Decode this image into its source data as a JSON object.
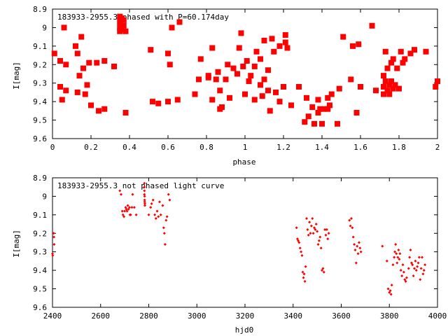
{
  "chart_data": [
    {
      "type": "scatter",
      "title": "183933-2955.3 phased with P=60.174day",
      "xlabel": "phase",
      "ylabel": "I[mag]",
      "xlim": [
        0,
        2
      ],
      "ylim": [
        8.9,
        9.6
      ],
      "y_inverted": true,
      "x_ticks": [
        "0",
        "0.2",
        "0.4",
        "0.6",
        "0.8",
        "1",
        "1.2",
        "1.4",
        "1.6",
        "1.8",
        "2"
      ],
      "y_ticks": [
        "8.9",
        "9",
        "9.1",
        "9.2",
        "9.3",
        "9.4",
        "9.5",
        "9.6"
      ],
      "grid": false,
      "marker_color": "#ff0000",
      "points": [
        [
          0.01,
          9.14
        ],
        [
          0.04,
          9.18
        ],
        [
          0.04,
          9.32
        ],
        [
          0.05,
          9.39
        ],
        [
          0.06,
          9.0
        ],
        [
          0.07,
          9.34
        ],
        [
          0.07,
          9.2
        ],
        [
          0.12,
          9.1
        ],
        [
          0.13,
          9.14
        ],
        [
          0.13,
          9.35
        ],
        [
          0.14,
          9.26
        ],
        [
          0.15,
          9.05
        ],
        [
          0.16,
          9.22
        ],
        [
          0.17,
          9.36
        ],
        [
          0.18,
          9.31
        ],
        [
          0.19,
          9.19
        ],
        [
          0.2,
          9.42
        ],
        [
          0.23,
          9.19
        ],
        [
          0.24,
          9.45
        ],
        [
          0.27,
          9.18
        ],
        [
          0.27,
          9.44
        ],
        [
          0.32,
          9.21
        ],
        [
          0.38,
          9.46
        ],
        [
          0.35,
          8.94
        ],
        [
          0.35,
          8.97
        ],
        [
          0.35,
          9.0
        ],
        [
          0.35,
          9.02
        ],
        [
          0.36,
          8.95
        ],
        [
          0.36,
          9.01
        ],
        [
          0.37,
          8.96
        ],
        [
          0.37,
          8.99
        ],
        [
          0.38,
          9.02
        ],
        [
          0.51,
          9.12
        ],
        [
          0.52,
          9.4
        ],
        [
          0.55,
          9.41
        ],
        [
          0.6,
          9.14
        ],
        [
          0.6,
          9.4
        ],
        [
          0.61,
          9.2
        ],
        [
          0.62,
          9.0
        ],
        [
          0.65,
          9.39
        ],
        [
          0.66,
          8.97
        ],
        [
          0.74,
          9.36
        ],
        [
          0.76,
          9.28
        ],
        [
          0.77,
          9.17
        ],
        [
          0.81,
          9.26
        ],
        [
          0.81,
          9.27
        ],
        [
          0.83,
          9.11
        ],
        [
          0.83,
          9.39
        ],
        [
          0.85,
          9.28
        ],
        [
          0.86,
          9.24
        ],
        [
          0.87,
          9.44
        ],
        [
          0.87,
          9.34
        ],
        [
          0.88,
          9.43
        ],
        [
          0.9,
          9.28
        ],
        [
          0.91,
          9.2
        ],
        [
          0.92,
          9.38
        ],
        [
          0.94,
          9.22
        ],
        [
          0.96,
          9.25
        ],
        [
          0.97,
          9.11
        ],
        [
          0.98,
          9.03
        ],
        [
          0.99,
          9.21
        ],
        [
          1.0,
          9.36
        ],
        [
          1.01,
          9.18
        ],
        [
          1.02,
          9.29
        ],
        [
          1.03,
          9.26
        ],
        [
          1.05,
          9.21
        ],
        [
          1.05,
          9.39
        ],
        [
          1.06,
          9.13
        ],
        [
          1.08,
          9.17
        ],
        [
          1.08,
          9.31
        ],
        [
          1.09,
          9.37
        ],
        [
          1.1,
          9.07
        ],
        [
          1.1,
          9.28
        ],
        [
          1.12,
          9.23
        ],
        [
          1.12,
          9.34
        ],
        [
          1.13,
          9.45
        ],
        [
          1.14,
          9.06
        ],
        [
          1.15,
          9.13
        ],
        [
          1.16,
          9.35
        ],
        [
          1.18,
          9.1
        ],
        [
          1.18,
          9.4
        ],
        [
          1.2,
          9.32
        ],
        [
          1.21,
          9.04
        ],
        [
          1.21,
          9.08
        ],
        [
          1.22,
          9.11
        ],
        [
          1.24,
          9.42
        ],
        [
          1.28,
          9.32
        ],
        [
          1.31,
          9.51
        ],
        [
          1.32,
          9.38
        ],
        [
          1.33,
          9.48
        ],
        [
          1.35,
          9.43
        ],
        [
          1.36,
          9.52
        ],
        [
          1.38,
          9.39
        ],
        [
          1.38,
          9.46
        ],
        [
          1.39,
          9.44
        ],
        [
          1.4,
          9.52
        ],
        [
          1.41,
          9.44
        ],
        [
          1.43,
          9.38
        ],
        [
          1.43,
          9.44
        ],
        [
          1.44,
          9.42
        ],
        [
          1.45,
          9.36
        ],
        [
          1.48,
          9.52
        ],
        [
          1.49,
          9.33
        ],
        [
          1.51,
          9.05
        ],
        [
          1.55,
          9.28
        ],
        [
          1.56,
          9.1
        ],
        [
          1.58,
          9.46
        ],
        [
          1.59,
          9.09
        ],
        [
          1.6,
          9.32
        ],
        [
          1.66,
          8.99
        ],
        [
          1.68,
          9.34
        ],
        [
          1.72,
          9.32
        ],
        [
          1.72,
          9.26
        ],
        [
          1.72,
          9.36
        ],
        [
          1.73,
          9.13
        ],
        [
          1.73,
          9.29
        ],
        [
          1.74,
          9.34
        ],
        [
          1.74,
          9.22
        ],
        [
          1.75,
          9.31
        ],
        [
          1.75,
          9.36
        ],
        [
          1.76,
          9.19
        ],
        [
          1.76,
          9.29
        ],
        [
          1.77,
          9.33
        ],
        [
          1.77,
          9.17
        ],
        [
          1.78,
          9.31
        ],
        [
          1.79,
          9.22
        ],
        [
          1.8,
          9.33
        ],
        [
          1.81,
          9.13
        ],
        [
          1.82,
          9.19
        ],
        [
          1.83,
          9.17
        ],
        [
          1.86,
          9.14
        ],
        [
          1.88,
          9.12
        ],
        [
          1.94,
          9.13
        ],
        [
          1.99,
          9.32
        ],
        [
          2.0,
          9.29
        ]
      ]
    },
    {
      "type": "scatter",
      "title": "183933-2955.3 not phased light curve",
      "xlabel": "hjd0",
      "ylabel": "I[mag]",
      "xlim": [
        2400,
        4000
      ],
      "ylim": [
        8.9,
        9.6
      ],
      "y_inverted": true,
      "x_ticks": [
        "2400",
        "2600",
        "2800",
        "3000",
        "3200",
        "3400",
        "3600",
        "3800",
        "4000"
      ],
      "y_ticks": [
        "8.9",
        "9",
        "9.1",
        "9.2",
        "9.3",
        "9.4",
        "9.5",
        "9.6"
      ],
      "grid": false,
      "marker_color": "#ff0000",
      "points": [
        [
          2400,
          9.31
        ],
        [
          2401,
          9.32
        ],
        [
          2405,
          9.2
        ],
        [
          2406,
          9.22
        ],
        [
          2407,
          9.26
        ],
        [
          2680,
          8.97
        ],
        [
          2685,
          8.99
        ],
        [
          2690,
          9.08
        ],
        [
          2693,
          9.1
        ],
        [
          2697,
          9.11
        ],
        [
          2700,
          9.08
        ],
        [
          2704,
          9.06
        ],
        [
          2707,
          9.07
        ],
        [
          2710,
          9.08
        ],
        [
          2713,
          9.05
        ],
        [
          2716,
          9.07
        ],
        [
          2720,
          9.06
        ],
        [
          2722,
          9.1
        ],
        [
          2725,
          9.1
        ],
        [
          2730,
          9.06
        ],
        [
          2733,
          8.99
        ],
        [
          2740,
          9.06
        ],
        [
          2748,
          9.1
        ],
        [
          2782,
          8.93
        ],
        [
          2782,
          8.95
        ],
        [
          2782,
          8.97
        ],
        [
          2782,
          8.99
        ],
        [
          2783,
          9.0
        ],
        [
          2783,
          9.02
        ],
        [
          2783,
          9.03
        ],
        [
          2784,
          9.04
        ],
        [
          2784,
          9.05
        ],
        [
          2800,
          9.1
        ],
        [
          2808,
          9.06
        ],
        [
          2812,
          9.04
        ],
        [
          2818,
          9.02
        ],
        [
          2825,
          9.1
        ],
        [
          2830,
          9.12
        ],
        [
          2835,
          9.08
        ],
        [
          2840,
          9.11
        ],
        [
          2845,
          9.03
        ],
        [
          2850,
          9.1
        ],
        [
          2858,
          9.05
        ],
        [
          2862,
          9.17
        ],
        [
          2865,
          9.2
        ],
        [
          2868,
          9.26
        ],
        [
          2872,
          9.13
        ],
        [
          2876,
          9.11
        ],
        [
          2882,
          8.99
        ],
        [
          2887,
          9.02
        ],
        [
          3414,
          9.17
        ],
        [
          3418,
          9.23
        ],
        [
          3421,
          9.24
        ],
        [
          3425,
          9.25
        ],
        [
          3429,
          9.28
        ],
        [
          3433,
          9.3
        ],
        [
          3437,
          9.32
        ],
        [
          3440,
          9.41
        ],
        [
          3443,
          9.44
        ],
        [
          3446,
          9.42
        ],
        [
          3449,
          9.46
        ],
        [
          3452,
          9.38
        ],
        [
          3456,
          9.12
        ],
        [
          3460,
          9.18
        ],
        [
          3464,
          9.21
        ],
        [
          3468,
          9.14
        ],
        [
          3472,
          9.2
        ],
        [
          3476,
          9.16
        ],
        [
          3480,
          9.12
        ],
        [
          3484,
          9.2
        ],
        [
          3488,
          9.17
        ],
        [
          3492,
          9.18
        ],
        [
          3496,
          9.15
        ],
        [
          3500,
          9.19
        ],
        [
          3504,
          9.26
        ],
        [
          3508,
          9.24
        ],
        [
          3512,
          9.22
        ],
        [
          3516,
          9.28
        ],
        [
          3520,
          9.4
        ],
        [
          3524,
          9.39
        ],
        [
          3528,
          9.41
        ],
        [
          3532,
          9.18
        ],
        [
          3536,
          9.21
        ],
        [
          3540,
          9.18
        ],
        [
          3544,
          9.23
        ],
        [
          3548,
          9.2
        ],
        [
          3634,
          9.13
        ],
        [
          3638,
          9.16
        ],
        [
          3642,
          9.12
        ],
        [
          3646,
          9.17
        ],
        [
          3650,
          9.22
        ],
        [
          3654,
          9.26
        ],
        [
          3658,
          9.29
        ],
        [
          3662,
          9.36
        ],
        [
          3666,
          9.27
        ],
        [
          3670,
          9.31
        ],
        [
          3674,
          9.25
        ],
        [
          3678,
          9.28
        ],
        [
          3682,
          9.3
        ],
        [
          3771,
          9.27
        ],
        [
          3790,
          9.35
        ],
        [
          3795,
          9.5
        ],
        [
          3800,
          9.52
        ],
        [
          3804,
          9.51
        ],
        [
          3807,
          9.53
        ],
        [
          3810,
          9.48
        ],
        [
          3815,
          9.37
        ],
        [
          3820,
          9.33
        ],
        [
          3823,
          9.3
        ],
        [
          3826,
          9.26
        ],
        [
          3829,
          9.31
        ],
        [
          3832,
          9.36
        ],
        [
          3835,
          9.33
        ],
        [
          3838,
          9.29
        ],
        [
          3841,
          9.34
        ],
        [
          3844,
          9.31
        ],
        [
          3848,
          9.4
        ],
        [
          3852,
          9.43
        ],
        [
          3856,
          9.37
        ],
        [
          3860,
          9.41
        ],
        [
          3864,
          9.45
        ],
        [
          3868,
          9.46
        ],
        [
          3872,
          9.44
        ],
        [
          3880,
          9.39
        ],
        [
          3884,
          9.33
        ],
        [
          3888,
          9.29
        ],
        [
          3892,
          9.36
        ],
        [
          3896,
          9.37
        ],
        [
          3900,
          9.43
        ],
        [
          3904,
          9.39
        ],
        [
          3908,
          9.35
        ],
        [
          3912,
          9.4
        ],
        [
          3916,
          9.38
        ],
        [
          3920,
          9.36
        ],
        [
          3924,
          9.33
        ],
        [
          3928,
          9.45
        ],
        [
          3932,
          9.39
        ],
        [
          3936,
          9.33
        ],
        [
          3940,
          9.42
        ],
        [
          3944,
          9.4
        ],
        [
          3948,
          9.37
        ]
      ]
    }
  ]
}
